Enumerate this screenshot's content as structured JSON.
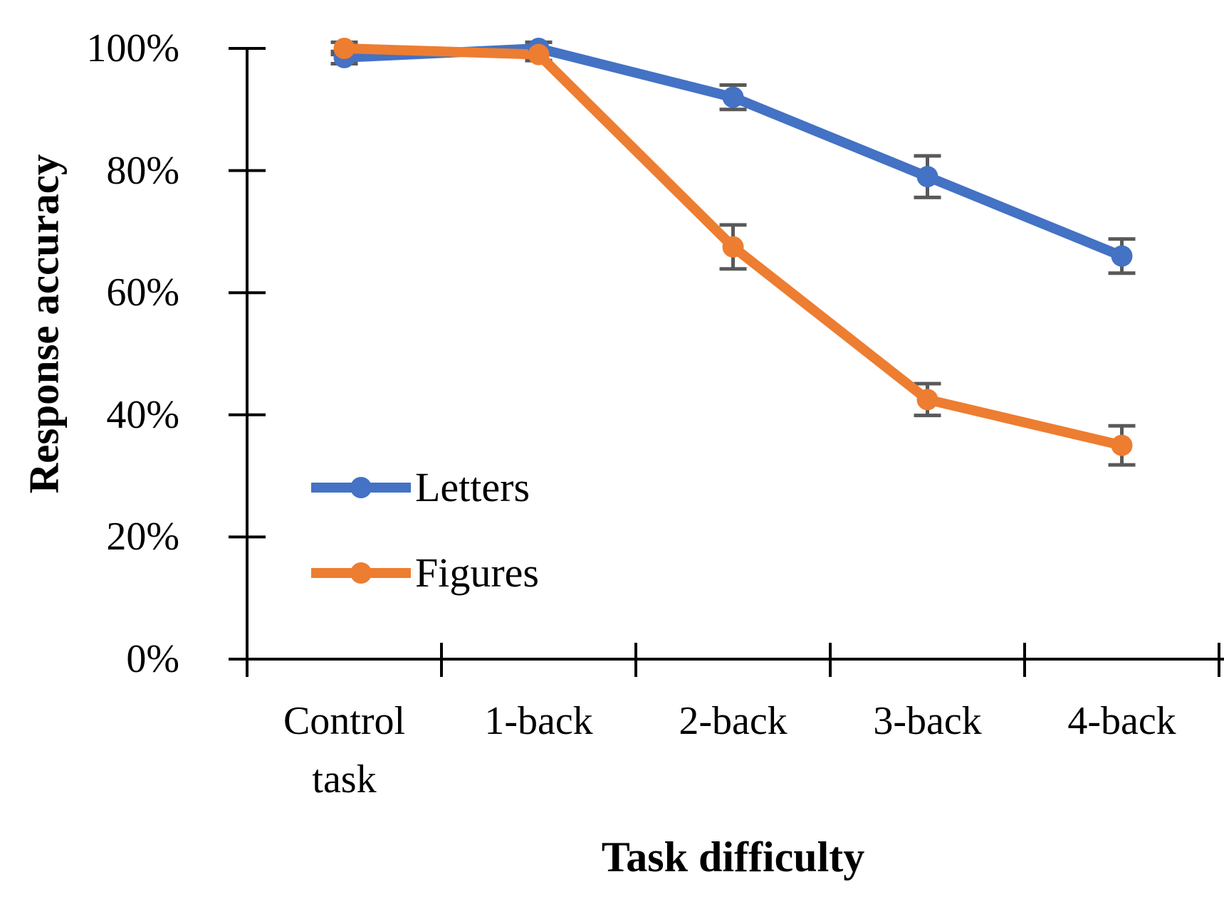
{
  "chart_data": {
    "type": "line",
    "title": "",
    "xlabel": "Task difficulty",
    "ylabel": "Response accuracy",
    "categories": [
      "Control task",
      "1-back",
      "2-back",
      "3-back",
      "4-back"
    ],
    "series": [
      {
        "name": "Letters",
        "color": "#4472C4",
        "values": [
          98.5,
          100,
          92,
          79,
          66
        ],
        "errors": [
          1,
          1,
          2,
          3.4,
          2.8
        ]
      },
      {
        "name": "Figures",
        "color": "#ED7D31",
        "values": [
          100,
          99,
          67.5,
          42.5,
          35
        ],
        "errors": [
          1,
          1,
          3.6,
          2.6,
          3.2
        ]
      }
    ],
    "ylim": [
      0,
      100
    ],
    "ytick_step": 20,
    "ytick_labels": [
      "0%",
      "20%",
      "40%",
      "60%",
      "80%",
      "100%"
    ],
    "grid": false,
    "legend_position": "inside-left",
    "marker": "circle",
    "error_bars": true,
    "error_bar_color": "#595959",
    "axis_color": "#000000"
  }
}
